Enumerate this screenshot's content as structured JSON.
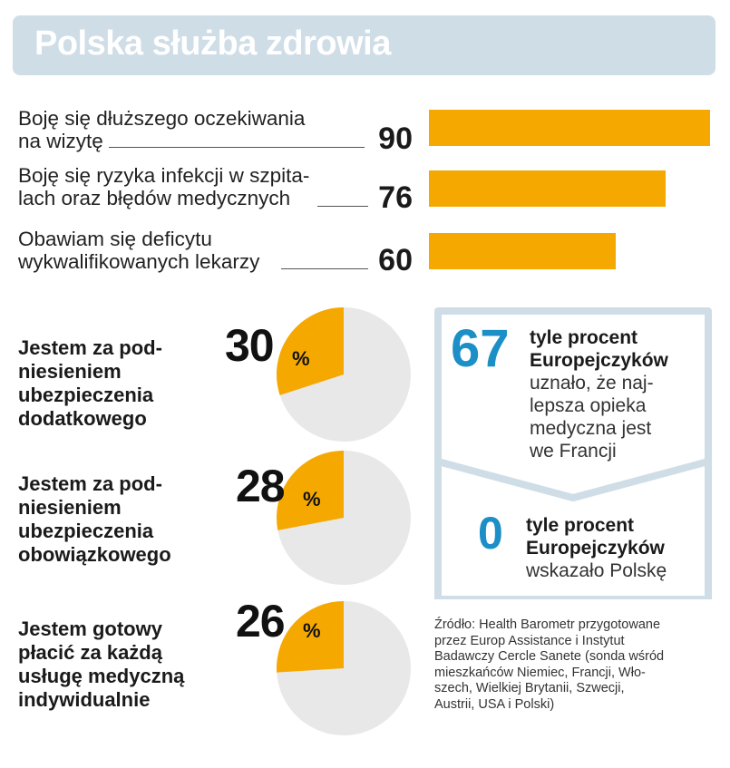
{
  "title": "Polska służba zdrowia",
  "chart_data": [
    {
      "type": "bar",
      "orientation": "horizontal",
      "categories": [
        "Boję się dłuższego oczekiwania na wizytę",
        "Boję się ryzyka infekcji w szpitalach oraz błędów medycznych",
        "Obawiam się deficytu wykwalifikowanych lekarzy"
      ],
      "values": [
        90,
        76,
        60
      ],
      "xlim": [
        0,
        100
      ],
      "colors": {
        "bar": "#f5a800"
      }
    },
    {
      "type": "pie",
      "slices": [
        {
          "label": "Jestem za podniesieniem ubezpieczenia dodatkowego",
          "value": 30
        },
        {
          "label": "Jestem za podniesieniem ubezpieczenia obowiązkowego",
          "value": 28
        },
        {
          "label": "Jestem gotowy płacić za każdą usługę medyczną indywidualnie",
          "value": 26
        }
      ],
      "colors": {
        "slice": "#f5a800",
        "rest": "#e8e8e8"
      }
    }
  ],
  "bars": [
    {
      "label_lines": [
        "Boję się dłuższego oczekiwania",
        "na wizytę"
      ],
      "value": "90"
    },
    {
      "label_lines": [
        "Boję się ryzyka infekcji w szpita-",
        "lach oraz błędów medycznych"
      ],
      "value": "76"
    },
    {
      "label_lines": [
        "Obawiam się deficytu",
        "wykwalifikowanych lekarzy"
      ],
      "value": "60"
    }
  ],
  "pies": [
    {
      "label_lines": [
        "Jestem za pod-",
        "niesieniem",
        "ubezpieczenia",
        "dodatkowego"
      ],
      "value": "30",
      "pct": "%"
    },
    {
      "label_lines": [
        "Jestem za pod-",
        "niesieniem",
        "ubezpieczenia",
        "obowiązkowego"
      ],
      "value": "28",
      "pct": "%"
    },
    {
      "label_lines": [
        "Jestem gotowy",
        "płacić za każdą",
        "usługę medyczną",
        "indywidualnie"
      ],
      "value": "26",
      "pct": "%"
    }
  ],
  "info": {
    "top_number": "67",
    "top_bold": [
      "tyle procent",
      "Europejczyków"
    ],
    "top_text": [
      "uznało, że naj-",
      "lepsza opieka",
      "medyczna jest",
      "we Francji"
    ],
    "bottom_number": "0",
    "bottom_bold": [
      "tyle procent",
      "Europejczyków"
    ],
    "bottom_text": [
      "wskazało Polskę"
    ]
  },
  "source_lines": [
    "Źródło: Health Barometr przygotowane",
    "przez Europ Assistance i Instytut",
    "Badawczy Cercle Sanete (sonda wśród",
    "mieszkańców Niemiec, Francji, Wło-",
    "szech, Wielkiej Brytanii, Szwecji,",
    "Austrii, USA i Polski)"
  ],
  "colors": {
    "accent": "#f5a800",
    "blue": "#1b8fc6",
    "title_bg": "#cfdde7",
    "box_border": "#cfdde7",
    "pie_bg": "#e8e8e8"
  }
}
